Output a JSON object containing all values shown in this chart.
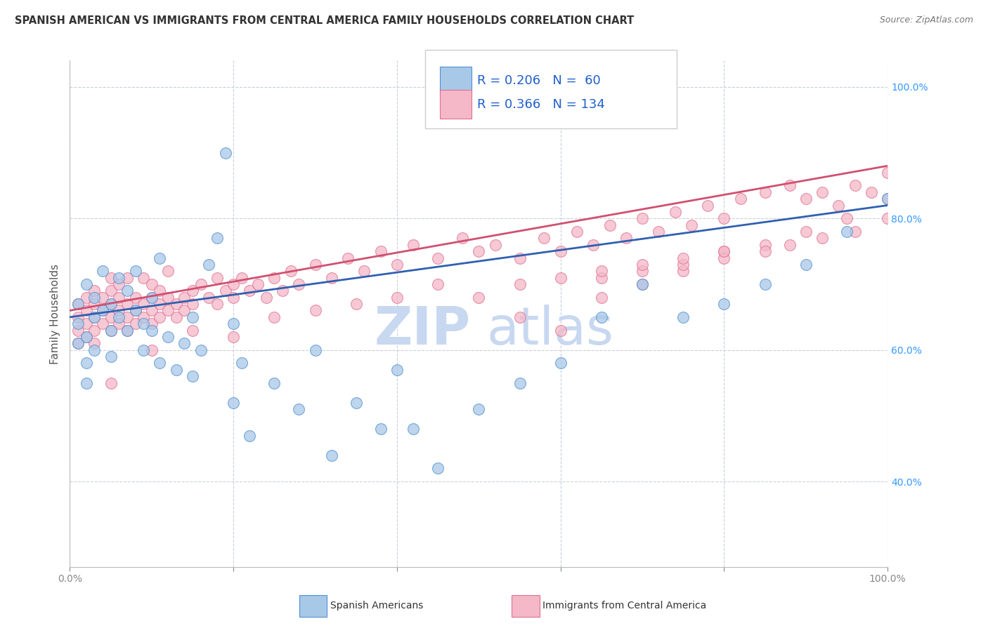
{
  "title": "SPANISH AMERICAN VS IMMIGRANTS FROM CENTRAL AMERICA FAMILY HOUSEHOLDS CORRELATION CHART",
  "source": "Source: ZipAtlas.com",
  "ylabel": "Family Households",
  "blue_R": 0.206,
  "blue_N": 60,
  "pink_R": 0.366,
  "pink_N": 134,
  "blue_color": "#a8c8e8",
  "pink_color": "#f4b8c8",
  "blue_edge_color": "#5090d0",
  "pink_edge_color": "#e07090",
  "blue_line_color": "#3060b0",
  "pink_line_color": "#d05070",
  "legend_color": "#2060cc",
  "watermark_color": "#c8d8f0",
  "grid_color": "#c8d0d8",
  "right_label_color": "#3399ff",
  "xlabel_color": "#555555",
  "title_color": "#333333",
  "source_color": "#777777",
  "ylabel_color": "#555555",
  "blue_line_start_y": 65.0,
  "blue_line_end_y": 82.0,
  "pink_line_start_y": 66.0,
  "pink_line_end_y": 88.0,
  "xlim": [
    0,
    100
  ],
  "ylim": [
    27,
    104
  ],
  "blue_x": [
    1,
    1,
    1,
    2,
    2,
    2,
    2,
    3,
    3,
    3,
    4,
    4,
    5,
    5,
    5,
    6,
    6,
    7,
    7,
    8,
    8,
    9,
    9,
    10,
    10,
    11,
    11,
    12,
    13,
    14,
    15,
    15,
    16,
    17,
    18,
    19,
    20,
    20,
    21,
    22,
    25,
    28,
    30,
    32,
    35,
    38,
    40,
    42,
    45,
    50,
    55,
    60,
    65,
    70,
    75,
    80,
    85,
    90,
    95,
    100
  ],
  "blue_y": [
    64,
    61,
    67,
    58,
    62,
    55,
    70,
    65,
    60,
    68,
    72,
    66,
    63,
    67,
    59,
    71,
    65,
    69,
    63,
    72,
    66,
    64,
    60,
    68,
    63,
    74,
    58,
    62,
    57,
    61,
    56,
    65,
    60,
    73,
    77,
    90,
    64,
    52,
    58,
    47,
    55,
    51,
    60,
    44,
    52,
    48,
    57,
    48,
    42,
    51,
    55,
    58,
    65,
    70,
    65,
    67,
    70,
    73,
    78,
    83
  ],
  "pink_x": [
    1,
    1,
    1,
    1,
    2,
    2,
    2,
    2,
    3,
    3,
    3,
    3,
    3,
    4,
    4,
    4,
    5,
    5,
    5,
    5,
    5,
    6,
    6,
    6,
    6,
    7,
    7,
    7,
    7,
    8,
    8,
    8,
    9,
    9,
    9,
    10,
    10,
    10,
    10,
    11,
    11,
    11,
    12,
    12,
    12,
    13,
    13,
    14,
    14,
    15,
    15,
    16,
    17,
    18,
    18,
    19,
    20,
    20,
    21,
    22,
    23,
    24,
    25,
    26,
    27,
    28,
    30,
    32,
    34,
    36,
    38,
    40,
    42,
    45,
    48,
    50,
    52,
    55,
    58,
    60,
    62,
    64,
    66,
    68,
    70,
    72,
    74,
    76,
    78,
    80,
    82,
    85,
    88,
    90,
    92,
    94,
    96,
    98,
    100,
    5,
    10,
    15,
    20,
    25,
    30,
    35,
    40,
    45,
    50,
    55,
    60,
    65,
    70,
    75,
    80,
    85,
    90,
    95,
    100,
    65,
    70,
    75,
    80,
    85,
    88,
    92,
    96,
    100,
    55,
    60,
    65,
    70,
    75,
    80
  ],
  "pink_y": [
    65,
    63,
    67,
    61,
    64,
    66,
    62,
    68,
    65,
    63,
    67,
    61,
    69,
    66,
    64,
    68,
    65,
    67,
    63,
    69,
    71,
    66,
    64,
    68,
    70,
    65,
    67,
    63,
    71,
    66,
    64,
    68,
    65,
    67,
    71,
    66,
    68,
    70,
    64,
    67,
    65,
    69,
    66,
    68,
    72,
    65,
    67,
    66,
    68,
    67,
    69,
    70,
    68,
    71,
    67,
    69,
    70,
    68,
    71,
    69,
    70,
    68,
    71,
    69,
    72,
    70,
    73,
    71,
    74,
    72,
    75,
    73,
    76,
    74,
    77,
    75,
    76,
    74,
    77,
    75,
    78,
    76,
    79,
    77,
    80,
    78,
    81,
    79,
    82,
    80,
    83,
    84,
    85,
    83,
    84,
    82,
    85,
    84,
    87,
    55,
    60,
    63,
    62,
    65,
    66,
    67,
    68,
    70,
    68,
    65,
    63,
    68,
    70,
    72,
    75,
    76,
    78,
    80,
    83,
    71,
    72,
    73,
    74,
    75,
    76,
    77,
    78,
    80,
    70,
    71,
    72,
    73,
    74,
    75
  ]
}
